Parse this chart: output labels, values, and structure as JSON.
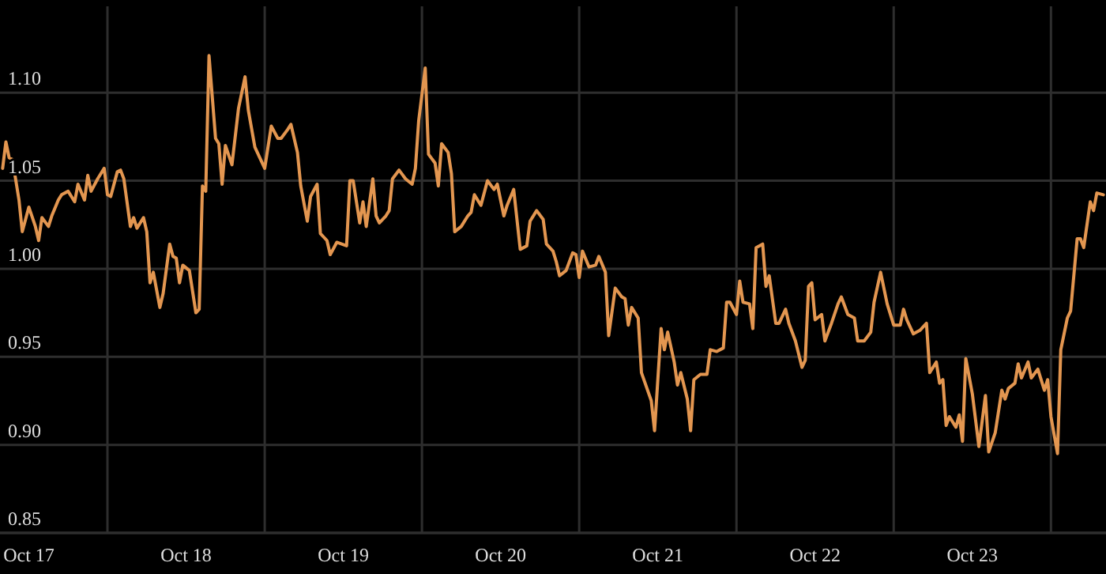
{
  "chart_data": {
    "type": "line",
    "xlim": [
      "--10-17T07:36",
      "--10-24T08:24"
    ],
    "ylim": [
      0.85,
      1.149
    ],
    "yticks": [
      0.85,
      {
        "value": 0.9,
        "label": "0.90"
      },
      0.95,
      {
        "value": 1,
        "label": "1.00"
      },
      1.05,
      {
        "value": 1.1,
        "label": "1.10"
      }
    ],
    "xticks": [
      {
        "value": "--10-17T12:00",
        "label": "Oct 17"
      },
      {
        "value": "--10-18T00:00",
        "label": null
      },
      {
        "value": "--10-18T12:00",
        "label": "Oct 18"
      },
      {
        "value": "--10-19T00:00",
        "label": null
      },
      {
        "value": "--10-19T12:00",
        "label": "Oct 19"
      },
      {
        "value": "--10-20T00:00",
        "label": null
      },
      {
        "value": "--10-20T12:00",
        "label": "Oct 20"
      },
      {
        "value": "--10-21T00:00",
        "label": null
      },
      {
        "value": "--10-21T12:00",
        "label": "Oct 21"
      },
      {
        "value": "--10-22T00:00",
        "label": null
      },
      {
        "value": "--10-22T12:00",
        "label": "Oct 22"
      },
      {
        "value": "--10-23T00:00",
        "label": null
      },
      {
        "value": "--10-23T12:00",
        "label": "Oct 23"
      },
      {
        "value": "--10-24T00:00",
        "label": null
      }
    ],
    "grid": true,
    "marker": "none",
    "line_style": "solid",
    "series": [
      {
        "color": "#e39650",
        "x": [
          "--10-17T08:00",
          "--10-17T08:30",
          "--10-17T09:00",
          "--10-17T09:30",
          "--10-17T10:30",
          "--10-17T11:00",
          "--10-17T12:00",
          "--10-17T13:00",
          "--10-17T13:30",
          "--10-17T14:00",
          "--10-17T15:00",
          "--10-17T15:30",
          "--10-17T16:30",
          "--10-17T17:00",
          "--10-17T18:00",
          "--10-17T19:00",
          "--10-17T19:30",
          "--10-17T20:30",
          "--10-17T21:00",
          "--10-17T21:30",
          "--10-17T22:30",
          "--10-17T23:30",
          "--10-18T00:00",
          "--10-18T00:30",
          "--10-18T01:30",
          "--10-18T02:00",
          "--10-18T02:30",
          "--10-18T03:30",
          "--10-18T04:00",
          "--10-18T04:30",
          "--10-18T05:30",
          "--10-18T06:00",
          "--10-18T06:30",
          "--10-18T07:00",
          "--10-18T08:00",
          "--10-18T08:30",
          "--10-18T09:30",
          "--10-18T10:00",
          "--10-18T10:30",
          "--10-18T11:00",
          "--10-18T11:30",
          "--10-18T12:30",
          "--10-18T13:30",
          "--10-18T14:00",
          "--10-18T14:30",
          "--10-18T15:00",
          "--10-18T15:30",
          "--10-18T16:30",
          "--10-18T17:00",
          "--10-18T17:30",
          "--10-18T18:00",
          "--10-18T19:00",
          "--10-18T20:00",
          "--10-18T21:00",
          "--10-18T21:30",
          "--10-18T22:30",
          "--10-19T00:00",
          "--10-19T01:00",
          "--10-19T02:00",
          "--10-19T02:30",
          "--10-19T03:30",
          "--10-19T04:00",
          "--10-19T05:00",
          "--10-19T05:30",
          "--10-19T06:30",
          "--10-19T07:00",
          "--10-19T08:00",
          "--10-19T08:30",
          "--10-19T09:30",
          "--10-19T10:00",
          "--10-19T11:00",
          "--10-19T12:30",
          "--10-19T13:00",
          "--10-19T13:30",
          "--10-19T14:30",
          "--10-19T15:00",
          "--10-19T15:30",
          "--10-19T16:30",
          "--10-19T17:00",
          "--10-19T17:30",
          "--10-19T18:30",
          "--10-19T19:00",
          "--10-19T19:30",
          "--10-19T20:30",
          "--10-19T21:30",
          "--10-19T22:30",
          "--10-19T23:00",
          "--10-19T23:30",
          "--10-20T00:30",
          "--10-20T01:00",
          "--10-20T02:00",
          "--10-20T02:30",
          "--10-20T03:00",
          "--10-20T04:00",
          "--10-20T04:30",
          "--10-20T05:00",
          "--10-20T06:00",
          "--10-20T07:00",
          "--10-20T07:30",
          "--10-20T08:00",
          "--10-20T09:00",
          "--10-20T10:00",
          "--10-20T11:00",
          "--10-20T11:30",
          "--10-20T12:30",
          "--10-20T13:00",
          "--10-20T14:00",
          "--10-20T15:00",
          "--10-20T16:00",
          "--10-20T16:30",
          "--10-20T17:30",
          "--10-20T18:30",
          "--10-20T19:00",
          "--10-20T20:00",
          "--10-20T20:30",
          "--10-20T21:00",
          "--10-20T22:00",
          "--10-20T23:00",
          "--10-20T23:30",
          "--10-21T00:00",
          "--10-21T00:30",
          "--10-21T01:30",
          "--10-21T02:30",
          "--10-21T03:00",
          "--10-21T04:00",
          "--10-21T04:30",
          "--10-21T05:30",
          "--10-21T06:30",
          "--10-21T07:00",
          "--10-21T07:30",
          "--10-21T08:00",
          "--10-21T09:00",
          "--10-21T09:30",
          "--10-21T11:00",
          "--10-21T11:30",
          "--10-21T12:30",
          "--10-21T13:00",
          "--10-21T13:30",
          "--10-21T14:30",
          "--10-21T15:00",
          "--10-21T15:30",
          "--10-21T16:30",
          "--10-21T17:00",
          "--10-21T17:30",
          "--10-21T18:30",
          "--10-21T19:30",
          "--10-21T20:00",
          "--10-21T21:00",
          "--10-21T22:00",
          "--10-21T22:30",
          "--10-21T23:00",
          "--10-22T00:00",
          "--10-22T00:30",
          "--10-22T01:00",
          "--10-22T02:00",
          "--10-22T02:30",
          "--10-22T03:00",
          "--10-22T04:00",
          "--10-22T04:30",
          "--10-22T05:00",
          "--10-22T06:00",
          "--10-22T06:30",
          "--10-22T07:30",
          "--10-22T08:00",
          "--10-22T09:00",
          "--10-22T10:00",
          "--10-22T10:30",
          "--10-22T11:00",
          "--10-22T11:30",
          "--10-22T12:00",
          "--10-22T13:00",
          "--10-22T13:30",
          "--10-22T14:30",
          "--10-22T15:30",
          "--10-22T16:00",
          "--10-22T17:00",
          "--10-22T18:00",
          "--10-22T18:30",
          "--10-22T19:30",
          "--10-22T20:30",
          "--10-22T21:00",
          "--10-22T22:00",
          "--10-22T23:00",
          "--10-23T00:00",
          "--10-23T01:00",
          "--10-23T01:30",
          "--10-23T02:00",
          "--10-23T03:00",
          "--10-23T04:00",
          "--10-23T05:00",
          "--10-23T05:30",
          "--10-23T06:30",
          "--10-23T07:00",
          "--10-23T07:30",
          "--10-23T08:00",
          "--10-23T08:30",
          "--10-23T09:30",
          "--10-23T10:00",
          "--10-23T10:30",
          "--10-23T11:00",
          "--10-23T12:00",
          "--10-23T13:00",
          "--10-23T14:00",
          "--10-23T14:30",
          "--10-23T15:30",
          "--10-23T16:30",
          "--10-23T17:00",
          "--10-23T17:30",
          "--10-23T18:30",
          "--10-23T19:00",
          "--10-23T19:30",
          "--10-23T20:30",
          "--10-23T21:00",
          "--10-23T22:00",
          "--10-23T23:00",
          "--10-23T23:30",
          "--10-24T00:00",
          "--10-24T01:00",
          "--10-24T01:30",
          "--10-24T02:30",
          "--10-24T03:00",
          "--10-24T04:00",
          "--10-24T04:30",
          "--10-24T05:00",
          "--10-24T06:00",
          "--10-24T06:30",
          "--10-24T07:00",
          "--10-24T08:00"
        ],
        "values": [
          1.057,
          1.072,
          1.063,
          1.062,
          1.039,
          1.021,
          1.035,
          1.024,
          1.016,
          1.029,
          1.024,
          1.03,
          1.039,
          1.042,
          1.044,
          1.038,
          1.048,
          1.039,
          1.053,
          1.044,
          1.051,
          1.057,
          1.042,
          1.041,
          1.055,
          1.056,
          1.051,
          1.024,
          1.029,
          1.023,
          1.029,
          1.021,
          0.992,
          0.998,
          0.978,
          0.986,
          1.014,
          1.007,
          1.006,
          0.992,
          1.002,
          0.999,
          0.975,
          0.977,
          1.047,
          1.044,
          1.121,
          1.074,
          1.071,
          1.048,
          1.07,
          1.059,
          1.091,
          1.109,
          1.09,
          1.069,
          1.057,
          1.081,
          1.074,
          1.074,
          1.079,
          1.082,
          1.066,
          1.047,
          1.027,
          1.041,
          1.048,
          1.02,
          1.016,
          1.008,
          1.015,
          1.013,
          1.05,
          1.05,
          1.026,
          1.038,
          1.024,
          1.051,
          1.03,
          1.026,
          1.03,
          1.033,
          1.051,
          1.056,
          1.051,
          1.048,
          1.057,
          1.084,
          1.114,
          1.065,
          1.06,
          1.047,
          1.071,
          1.066,
          1.054,
          1.021,
          1.024,
          1.03,
          1.032,
          1.042,
          1.036,
          1.05,
          1.045,
          1.048,
          1.03,
          1.036,
          1.045,
          1.011,
          1.013,
          1.027,
          1.033,
          1.028,
          1.014,
          1.01,
          1.004,
          0.996,
          0.999,
          1.009,
          1.008,
          0.995,
          1.01,
          1.001,
          1.002,
          1.007,
          0.998,
          0.962,
          0.989,
          0.984,
          0.983,
          0.968,
          0.978,
          0.972,
          0.941,
          0.925,
          0.908,
          0.966,
          0.954,
          0.964,
          0.947,
          0.934,
          0.941,
          0.926,
          0.908,
          0.937,
          0.94,
          0.94,
          0.954,
          0.953,
          0.955,
          0.981,
          0.981,
          0.974,
          0.993,
          0.981,
          0.98,
          0.966,
          1.012,
          1.014,
          0.99,
          0.996,
          0.969,
          0.969,
          0.977,
          0.969,
          0.959,
          0.944,
          0.948,
          0.99,
          0.992,
          0.971,
          0.974,
          0.959,
          0.969,
          0.98,
          0.984,
          0.974,
          0.972,
          0.959,
          0.959,
          0.964,
          0.981,
          0.998,
          0.98,
          0.968,
          0.968,
          0.977,
          0.971,
          0.963,
          0.965,
          0.969,
          0.941,
          0.947,
          0.935,
          0.937,
          0.911,
          0.916,
          0.91,
          0.917,
          0.902,
          0.949,
          0.929,
          0.899,
          0.928,
          0.896,
          0.907,
          0.931,
          0.926,
          0.932,
          0.935,
          0.946,
          0.938,
          0.947,
          0.938,
          0.943,
          0.931,
          0.937,
          0.916,
          0.895,
          0.954,
          0.972,
          0.976,
          1.017,
          1.017,
          1.012,
          1.038,
          1.033,
          1.043,
          1.042
        ]
      }
    ]
  }
}
